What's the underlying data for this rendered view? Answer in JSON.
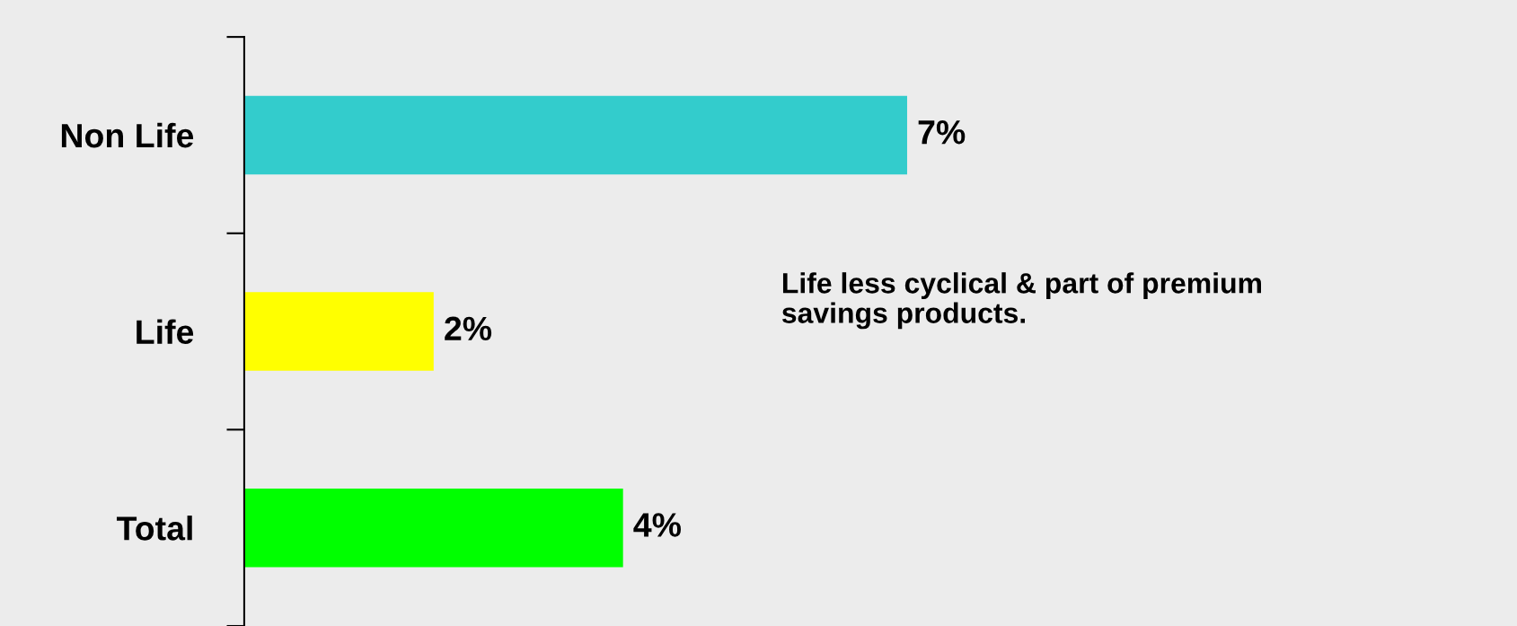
{
  "chart_data": {
    "type": "bar",
    "orientation": "horizontal",
    "categories": [
      "Non Life",
      "Life",
      "Total"
    ],
    "values": [
      7,
      2,
      4
    ],
    "colors": [
      "#33cccc",
      "#ffff00",
      "#00ff00"
    ],
    "value_labels": [
      "7%",
      "2%",
      "4%"
    ],
    "annotations": [
      "Life less cyclical & part of premium\nsavings products."
    ],
    "grid": false,
    "legend": false
  }
}
